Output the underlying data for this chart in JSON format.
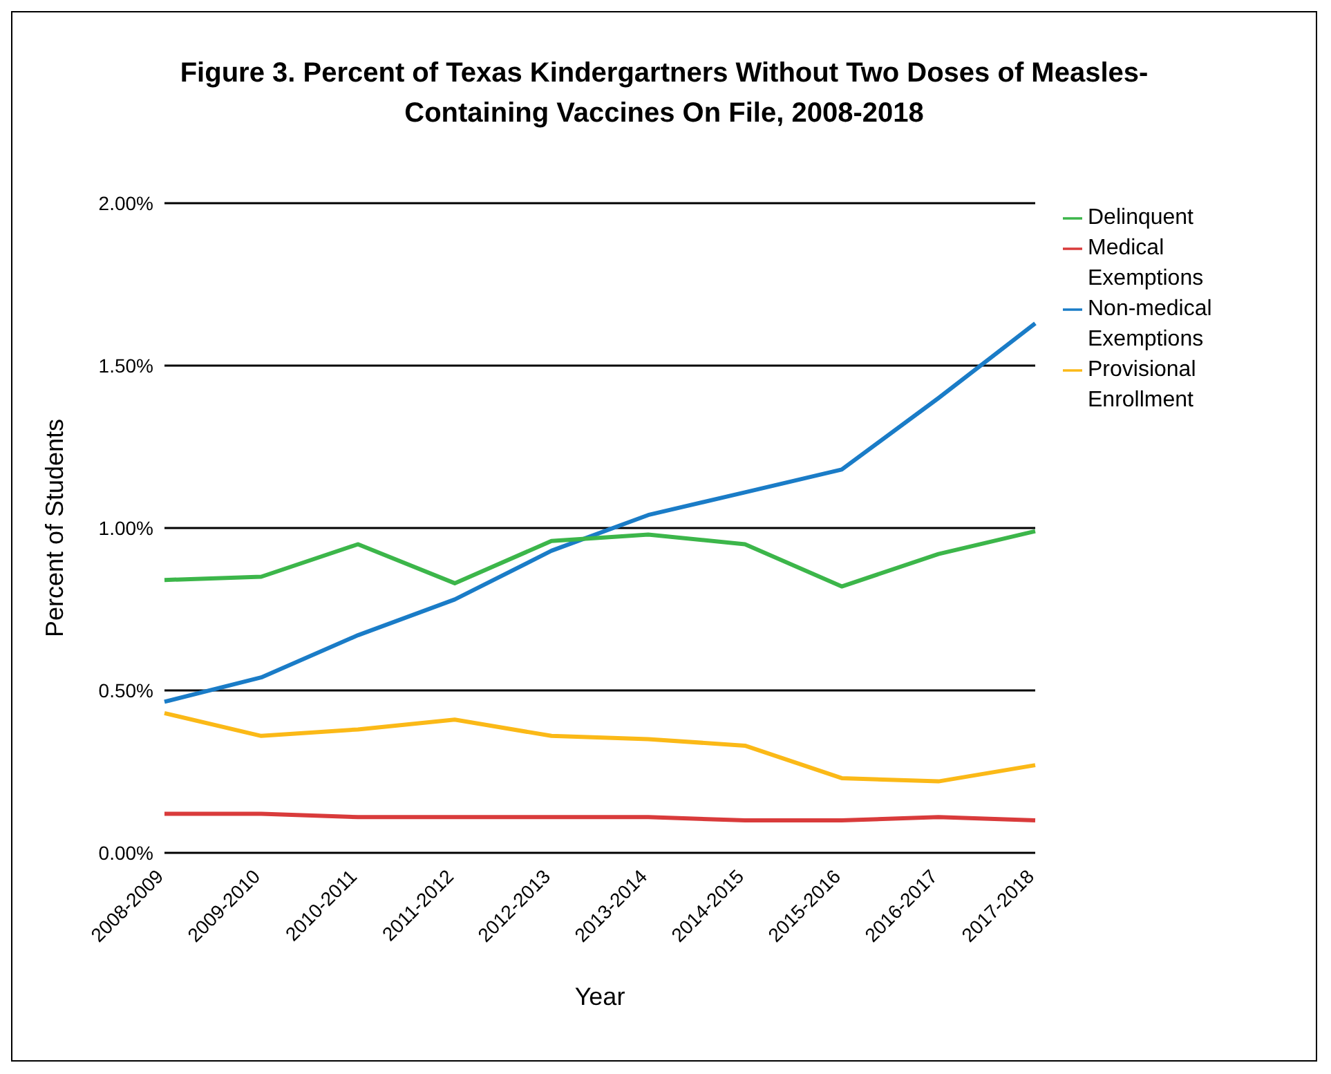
{
  "chart_data": {
    "type": "line",
    "title": "Figure 3. Percent of Texas Kindergartners Without Two Doses of Measles-Containing Vaccines On File, 2008-2018",
    "xlabel": "Year",
    "ylabel": "Percent of Students",
    "categories": [
      "2008-2009",
      "2009-2010",
      "2010-2011",
      "2011-2012",
      "2012-2013",
      "2013-2014",
      "2014-2015",
      "2015-2016",
      "2016-2017",
      "2017-2018"
    ],
    "series": [
      {
        "name": "Non-medical Exemptions",
        "color": "#1a7cc7",
        "values": [
          0.465,
          0.54,
          0.67,
          0.78,
          0.93,
          1.04,
          1.11,
          1.18,
          1.4,
          1.63
        ]
      },
      {
        "name": "Medical Exemptions",
        "color": "#d93b3b",
        "values": [
          0.12,
          0.12,
          0.11,
          0.11,
          0.11,
          0.11,
          0.1,
          0.1,
          0.11,
          0.1
        ]
      },
      {
        "name": "Provisional Enrollment",
        "color": "#fbb917",
        "values": [
          0.43,
          0.36,
          0.38,
          0.41,
          0.36,
          0.35,
          0.33,
          0.23,
          0.22,
          0.27
        ]
      },
      {
        "name": "Delinquent",
        "color": "#3cb64a",
        "values": [
          0.84,
          0.85,
          0.95,
          0.83,
          0.96,
          0.98,
          0.95,
          0.82,
          0.92,
          0.99
        ]
      }
    ],
    "ylim": [
      0,
      2
    ],
    "yticks": [
      {
        "value": 0,
        "label": "0.00%"
      },
      {
        "value": 0.5,
        "label": "0.50%"
      },
      {
        "value": 1,
        "label": "1.00%"
      },
      {
        "value": 1.5,
        "label": "1.50%"
      },
      {
        "value": 2,
        "label": "2.00%"
      }
    ],
    "grid": "y",
    "legend": "right",
    "marker": "none",
    "line_style": "solid"
  }
}
